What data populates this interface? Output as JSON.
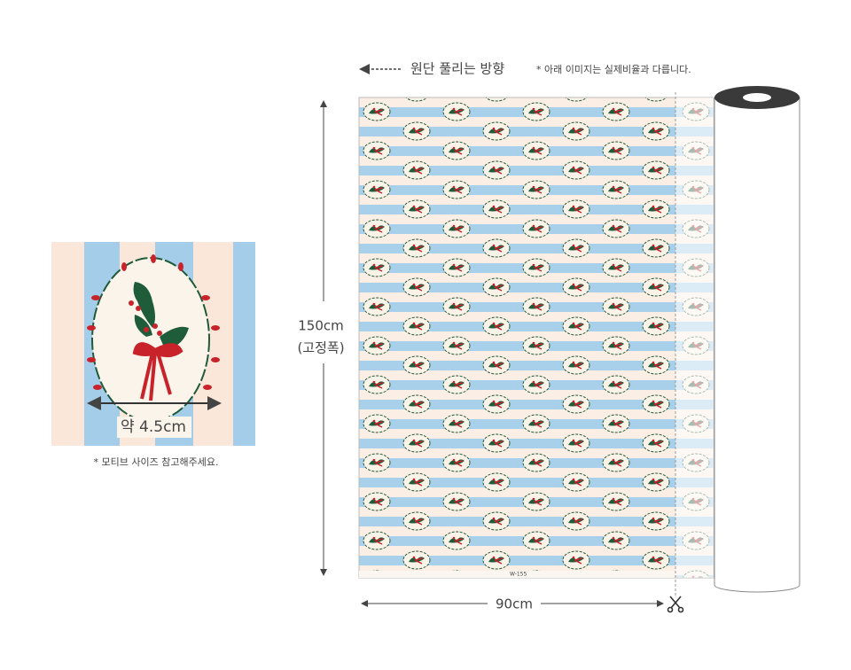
{
  "direction_label": "원단 풀리는 방향",
  "ratio_note": "* 아래 이미지는 실제비율과 다릅니다.",
  "width_label": "150cm",
  "width_note": "(고정폭)",
  "length_label": "90cm",
  "motif_size": "약 4.5cm",
  "motif_note": "* 모티브 사이즈 참고해주세요.",
  "selvage_code": "W-155"
}
